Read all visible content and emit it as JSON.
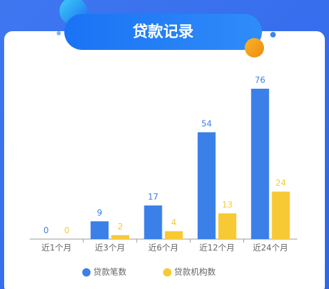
{
  "chart_data": {
    "type": "bar",
    "title": "贷款记录",
    "categories": [
      "近1个月",
      "近3个月",
      "近6个月",
      "近12个月",
      "近24个月"
    ],
    "series": [
      {
        "name": "贷款笔数",
        "color": "#3b80e8",
        "values": [
          0,
          9,
          17,
          54,
          76
        ]
      },
      {
        "name": "贷款机构数",
        "color": "#f7c934",
        "values": [
          0,
          2,
          4,
          13,
          24
        ]
      }
    ],
    "legend": "bottom"
  }
}
